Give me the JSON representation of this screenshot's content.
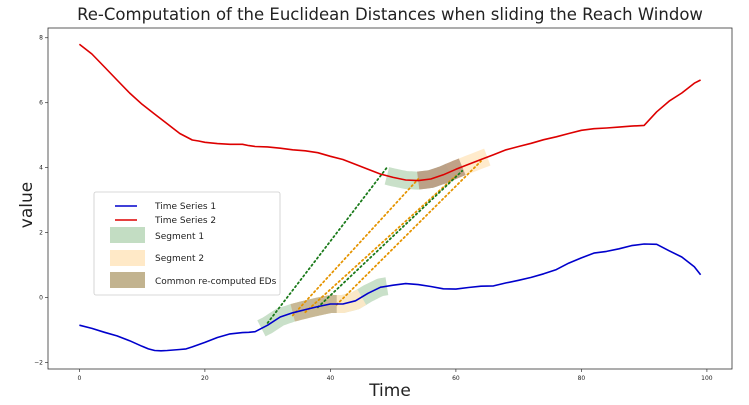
{
  "chart_data": {
    "type": "line",
    "title": "Re-Computation of the Euclidean Distances when sliding the Reach Window",
    "xlabel": "Time",
    "ylabel": "value",
    "xlim": [
      -5,
      104
    ],
    "ylim": [
      -2.2,
      8.3
    ],
    "x_ticks": [
      0,
      20,
      40,
      60,
      80,
      100
    ],
    "y_ticks": [
      -2,
      0,
      2,
      4,
      6,
      8
    ],
    "x_tick_labels": [
      "0",
      "20",
      "40",
      "60",
      "80",
      "100"
    ],
    "y_tick_labels": [
      "−2",
      "0",
      "2",
      "4",
      "6",
      "8"
    ],
    "grid": false,
    "legend_position": "center-left",
    "series": [
      {
        "name": "Time Series 1",
        "color": "#0000cc",
        "x": [
          0,
          2,
          4,
          6,
          8,
          10,
          11,
          12,
          13,
          14,
          16,
          17,
          18,
          20,
          22,
          24,
          26,
          27,
          28,
          30,
          32,
          34,
          36,
          38,
          40,
          42,
          44,
          46,
          48,
          50,
          52,
          54,
          56,
          58,
          60,
          62,
          64,
          66,
          68,
          70,
          72,
          74,
          76,
          78,
          80,
          82,
          84,
          86,
          88,
          90,
          92,
          94,
          96,
          98,
          99
        ],
        "y": [
          -0.85,
          -0.95,
          -1.07,
          -1.18,
          -1.33,
          -1.5,
          -1.58,
          -1.63,
          -1.64,
          -1.63,
          -1.6,
          -1.58,
          -1.52,
          -1.38,
          -1.23,
          -1.12,
          -1.08,
          -1.07,
          -1.05,
          -0.85,
          -0.6,
          -0.47,
          -0.37,
          -0.28,
          -0.2,
          -0.2,
          -0.1,
          0.13,
          0.32,
          0.38,
          0.43,
          0.4,
          0.34,
          0.27,
          0.26,
          0.31,
          0.35,
          0.36,
          0.45,
          0.53,
          0.62,
          0.73,
          0.86,
          1.06,
          1.22,
          1.37,
          1.42,
          1.5,
          1.6,
          1.65,
          1.64,
          1.44,
          1.25,
          0.95,
          0.7
        ]
      },
      {
        "name": "Time Series 2",
        "color": "#dd0000",
        "x": [
          0,
          2,
          4,
          6,
          8,
          10,
          12,
          14,
          16,
          18,
          19,
          20,
          22,
          24,
          26,
          27,
          28,
          30,
          32,
          34,
          36,
          38,
          40,
          42,
          44,
          46,
          48,
          50,
          52,
          54,
          56,
          58,
          60,
          62,
          64,
          66,
          68,
          70,
          72,
          74,
          76,
          78,
          80,
          82,
          84,
          86,
          88,
          90,
          92,
          94,
          96,
          98,
          99
        ],
        "y": [
          7.8,
          7.5,
          7.1,
          6.7,
          6.3,
          5.95,
          5.65,
          5.35,
          5.05,
          4.85,
          4.82,
          4.78,
          4.74,
          4.72,
          4.72,
          4.68,
          4.65,
          4.64,
          4.6,
          4.55,
          4.52,
          4.46,
          4.35,
          4.25,
          4.1,
          3.95,
          3.8,
          3.7,
          3.62,
          3.6,
          3.65,
          3.78,
          3.95,
          4.1,
          4.25,
          4.4,
          4.55,
          4.65,
          4.75,
          4.86,
          4.95,
          5.05,
          5.15,
          5.2,
          5.22,
          5.25,
          5.28,
          5.3,
          5.72,
          6.05,
          6.3,
          6.6,
          6.7
        ]
      }
    ],
    "segments": [
      {
        "name": "Segment 1",
        "color": "#c3ddc3",
        "x_range": [
          29,
          49
        ]
      },
      {
        "name": "Segment 2",
        "color": "#ffe9c7",
        "x_range": [
          34,
          45
        ]
      },
      {
        "name": "Common re-computed EDs",
        "color": "#c2b38f",
        "x_range": [
          34,
          41
        ]
      }
    ],
    "segments_ts2": [
      {
        "color": "#c3ddc3",
        "x_range": [
          49,
          59
        ]
      },
      {
        "color": "#ffe9c7",
        "x_range": [
          59,
          65
        ]
      },
      {
        "color": "#b99a7f",
        "x_range": [
          54,
          61
        ]
      }
    ],
    "dotted_lines": [
      {
        "color": "#1a7a1a",
        "from": [
          30,
          -0.78
        ],
        "to": [
          49,
          4.0
        ]
      },
      {
        "color": "#e59400",
        "from": [
          34,
          -0.55
        ],
        "to": [
          54,
          3.65
        ]
      },
      {
        "color": "#e59400",
        "from": [
          36,
          -0.45
        ],
        "to": [
          60,
          3.75
        ]
      },
      {
        "color": "#1a7a1a",
        "from": [
          38,
          -0.3
        ],
        "to": [
          61,
          3.9
        ]
      },
      {
        "color": "#e59400",
        "from": [
          41,
          -0.22
        ],
        "to": [
          64,
          4.2
        ]
      }
    ]
  }
}
